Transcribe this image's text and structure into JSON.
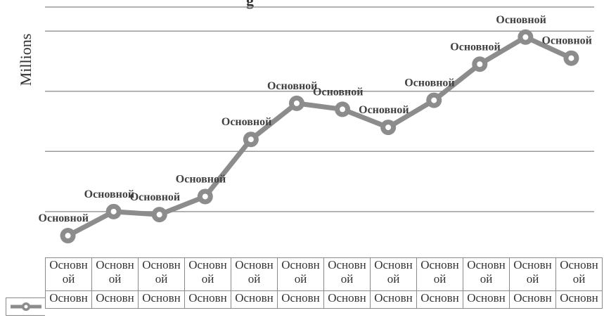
{
  "chart_data": {
    "type": "line",
    "title": "g",
    "xlabel": "",
    "ylabel": "Millions",
    "categories": [
      "Основной",
      "Основной",
      "Основной",
      "Основной",
      "Основной",
      "Основной",
      "Основной",
      "Основной",
      "Основной",
      "Основной",
      "Основной",
      "Основной"
    ],
    "category_labels_wrapped": [
      [
        "Основн",
        "ой"
      ],
      [
        "Основн",
        "ой"
      ],
      [
        "Основн",
        "ой"
      ],
      [
        "Основн",
        "ой"
      ],
      [
        "Основн",
        "ой"
      ],
      [
        "Основн",
        "ой"
      ],
      [
        "Основн",
        "ой"
      ],
      [
        "Основн",
        "ой"
      ],
      [
        "Основн",
        "ой"
      ],
      [
        "Основн",
        "ой"
      ],
      [
        "Основн",
        "ой"
      ],
      [
        "Основн",
        "ой"
      ]
    ],
    "series": [
      {
        "values": [
          0.1,
          0.5,
          0.45,
          0.75,
          1.7,
          2.3,
          2.2,
          1.9,
          2.35,
          2.95,
          3.4,
          3.05
        ],
        "data_labels": [
          "Основной",
          "Основной",
          "Основной",
          "Основной",
          "Основной",
          "Основной",
          "Основной",
          "Основной",
          "Основной",
          "Основной",
          "Основной",
          "Основной"
        ],
        "table_values": [
          "Основн",
          "Основн",
          "Основн",
          "Основн",
          "Основн",
          "Основн",
          "Основн",
          "Основн",
          "Основн",
          "Основн",
          "Основн",
          "Основн"
        ],
        "color": "#8c8c8c"
      }
    ],
    "ylim": [
      -0.25,
      3.9
    ],
    "gridlines": [
      0.5,
      1.5,
      2.5,
      3.5
    ],
    "grid": true,
    "legend": "data-table"
  }
}
